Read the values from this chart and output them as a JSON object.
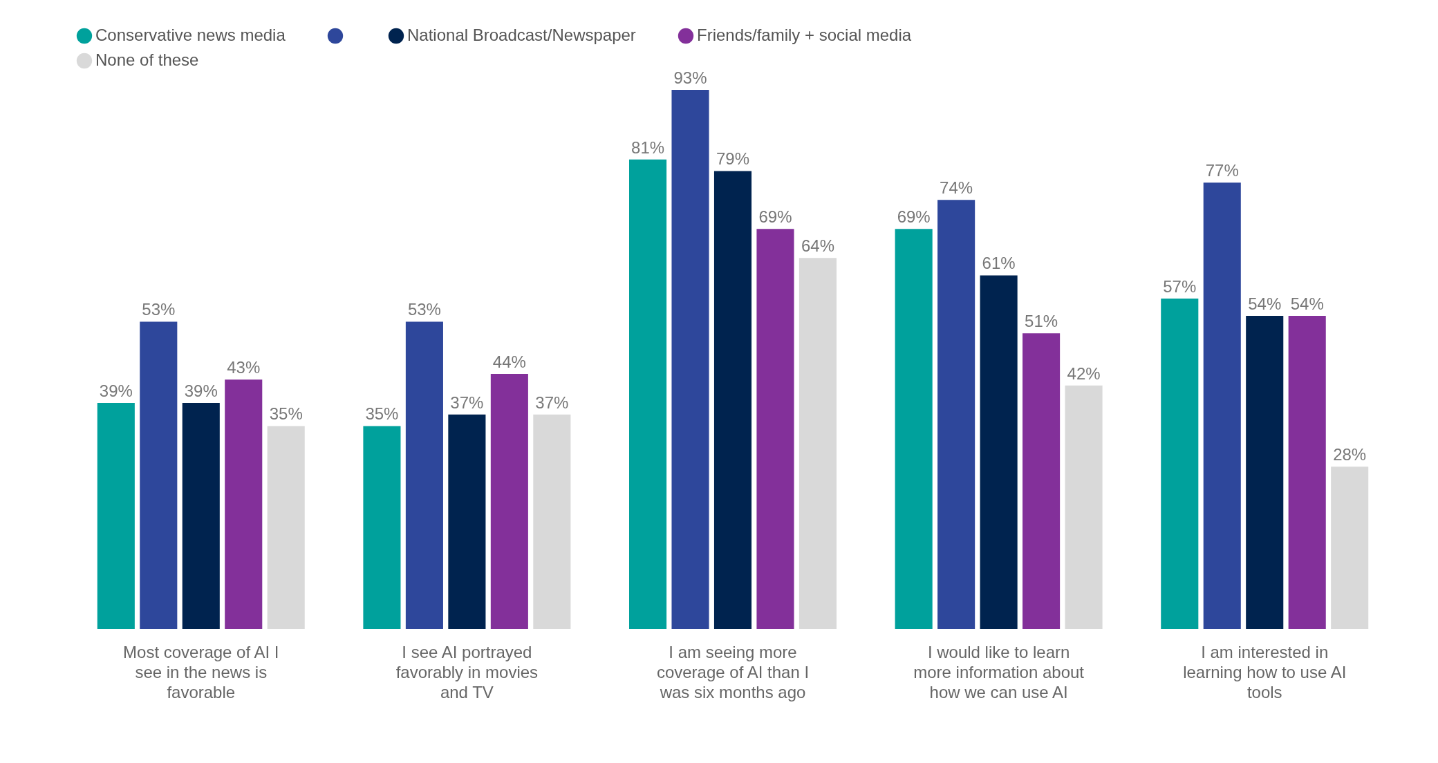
{
  "chart_data": {
    "type": "bar",
    "categories": [
      "Most coverage of AI I see in the news is favorable",
      "I see AI portrayed favorably in movies and TV",
      "I am seeing more coverage of AI than I was six months ago",
      "I would like to learn more information about how we can use AI",
      "I am interested in learning how to use AI tools"
    ],
    "series": [
      {
        "name": "Conservative news media",
        "color": "#00a19c",
        "values": [
          39,
          35,
          81,
          69,
          57
        ],
        "value_labels": [
          "39%",
          "35%",
          "81%",
          "69%",
          "57%"
        ]
      },
      {
        "color": "#2e479b",
        "values": [
          53,
          53,
          93,
          74,
          77
        ],
        "value_labels": [
          "53%",
          "53%",
          "93%",
          "74%",
          "77%"
        ]
      },
      {
        "name": "National Broadcast/Newspaper",
        "color": "#00234f",
        "values": [
          39,
          37,
          79,
          61,
          54
        ],
        "value_labels": [
          "39%",
          "37%",
          "79%",
          "61%",
          "54%"
        ]
      },
      {
        "name": "Friends/family + social media",
        "color": "#83309a",
        "values": [
          43,
          44,
          69,
          51,
          54
        ],
        "value_labels": [
          "43%",
          "44%",
          "69%",
          "51%",
          "54%"
        ]
      },
      {
        "name": "None of these",
        "color": "#d9d9d9",
        "values": [
          35,
          37,
          64,
          42,
          28
        ],
        "value_labels": [
          "35%",
          "37%",
          "64%",
          "42%",
          "28%"
        ]
      }
    ],
    "legend": "top",
    "grid": false
  }
}
